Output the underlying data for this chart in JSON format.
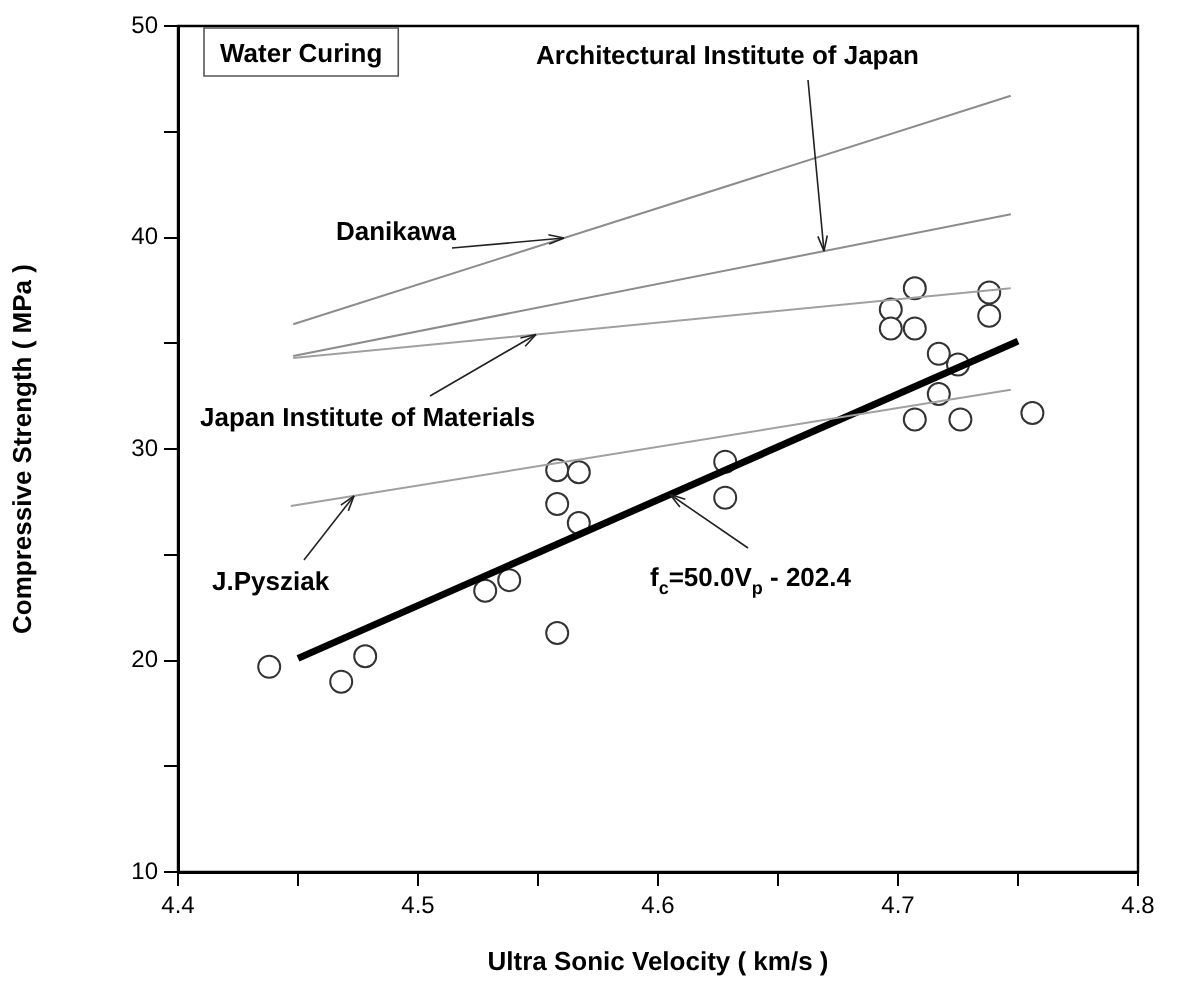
{
  "chart_data": {
    "type": "scatter",
    "title": "Water Curing",
    "xlabel": "Ultra Sonic Velocity ( km/s )",
    "ylabel": "Compressive Strength ( MPa )",
    "xlim": [
      4.4,
      4.8
    ],
    "ylim": [
      10,
      50
    ],
    "xticks": [
      4.4,
      {
        "value": 4.45,
        "label": null
      },
      4.5,
      {
        "value": 4.55,
        "label": null
      },
      4.6,
      {
        "value": 4.65,
        "label": null
      },
      4.7,
      {
        "value": 4.75,
        "label": null
      },
      4.8
    ],
    "yticks": [
      10,
      {
        "value": 15,
        "label": null
      },
      20,
      {
        "value": 25,
        "label": null
      },
      30,
      {
        "value": 35,
        "label": null
      },
      40,
      {
        "value": 45,
        "label": null
      },
      50
    ],
    "grid": false,
    "legend": false,
    "series": [
      {
        "name": "Danikawa",
        "type": "line",
        "color": "#8c8c8c",
        "marker": "none",
        "x": [
          4.448,
          4.747
        ],
        "values": [
          35.9,
          46.7
        ]
      },
      {
        "name": "Architectural Institute of Japan",
        "type": "line",
        "color": "#8c8c8c",
        "marker": "none",
        "x": [
          4.448,
          4.747
        ],
        "values": [
          34.4,
          41.1
        ]
      },
      {
        "name": "Japan Institute of Materials",
        "type": "line",
        "color": "#a0a0a0",
        "marker": "none",
        "x": [
          4.448,
          4.747
        ],
        "values": [
          34.3,
          37.6
        ]
      },
      {
        "name": "J.Pysziak",
        "type": "line",
        "color": "#a0a0a0",
        "marker": "none",
        "x": [
          4.447,
          4.747
        ],
        "values": [
          27.3,
          32.8
        ]
      },
      {
        "name": "f$_{c}$=50.0V$_{p}$ - 202.4",
        "type": "line",
        "color": "#000000",
        "marker": "none",
        "x": [
          4.45,
          4.75
        ],
        "values": [
          20.1,
          35.1
        ]
      },
      {
        "color": "#333333",
        "marker": "circle",
        "x": [
          4.438,
          4.468,
          4.478,
          4.528,
          4.538,
          4.558,
          4.558,
          4.558,
          4.567,
          4.567,
          4.628,
          4.628,
          4.707,
          4.697,
          4.697,
          4.707,
          4.738,
          4.738,
          4.717,
          4.725,
          4.717,
          4.707,
          4.726,
          4.756
        ],
        "values": [
          19.7,
          19.0,
          20.2,
          23.3,
          23.8,
          21.3,
          27.4,
          29.0,
          28.9,
          26.5,
          29.4,
          27.7,
          37.6,
          36.6,
          35.7,
          35.7,
          37.4,
          36.3,
          34.5,
          34.0,
          32.6,
          31.4,
          31.4,
          31.7
        ]
      }
    ]
  }
}
